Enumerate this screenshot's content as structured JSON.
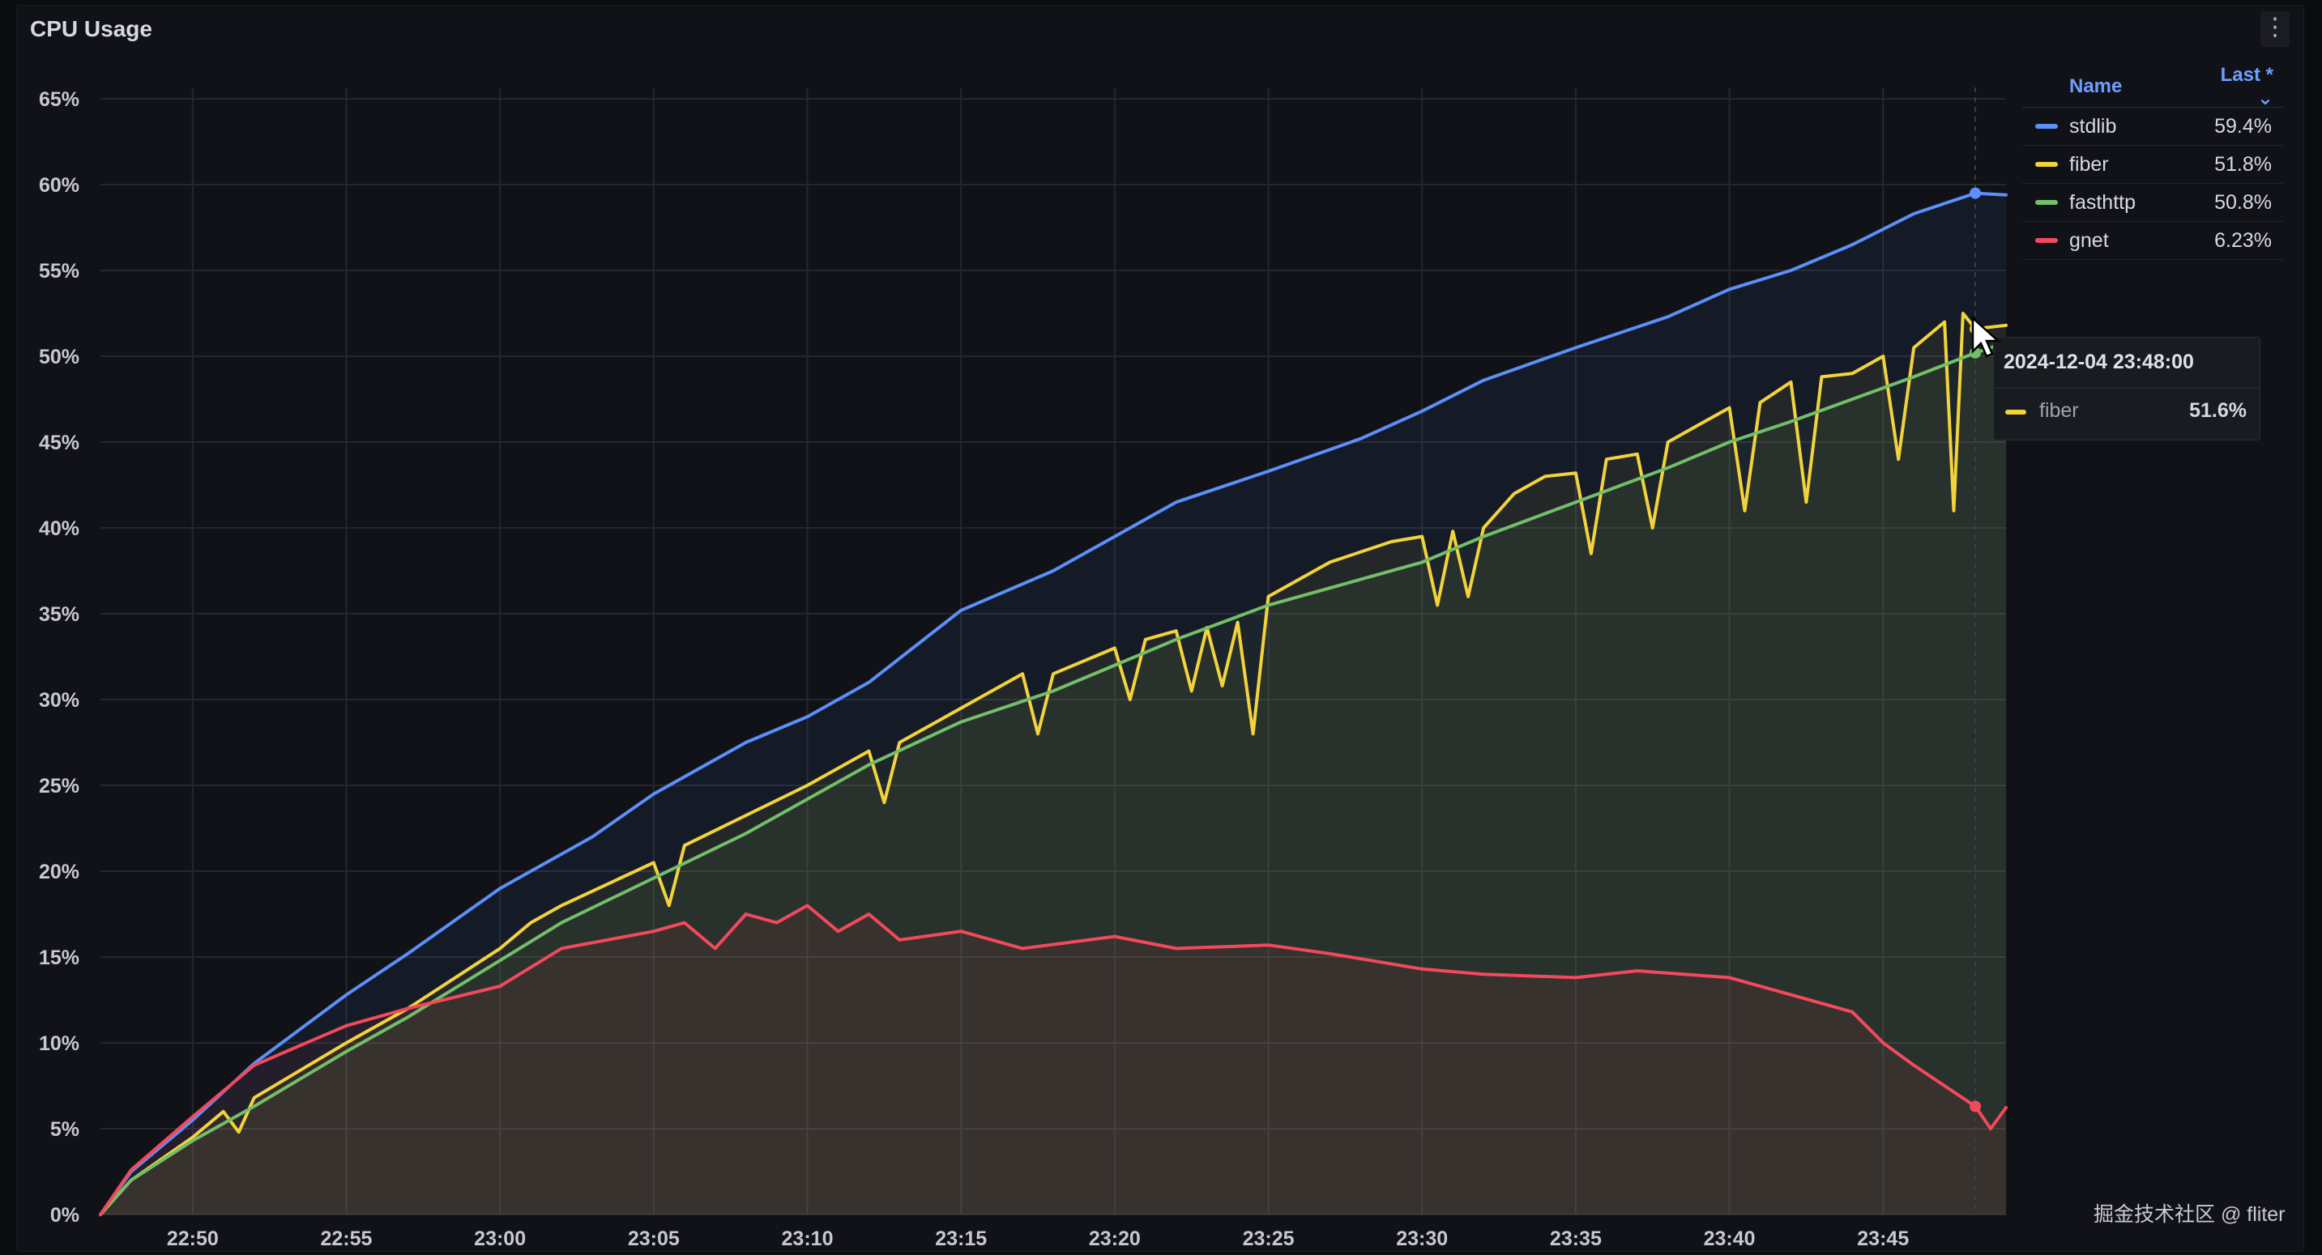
{
  "panel": {
    "title": "CPU Usage",
    "menu_glyph": "⋮"
  },
  "legend": {
    "name_header": "Name",
    "last_header": "Last * ⌄",
    "items": [
      {
        "name": "stdlib",
        "value": "59.4%",
        "color": "#5b8ff9"
      },
      {
        "name": "fiber",
        "value": "51.8%",
        "color": "#f2d33c"
      },
      {
        "name": "fasthttp",
        "value": "50.8%",
        "color": "#73bf69"
      },
      {
        "name": "gnet",
        "value": "6.23%",
        "color": "#f2495c"
      }
    ]
  },
  "tooltip": {
    "time": "2024-12-04 23:48:00",
    "series": "fiber",
    "value": "51.6%",
    "color": "#f2d33c"
  },
  "watermark": "掘金技术社区 @ fliter",
  "chart_data": {
    "type": "line",
    "title": "CPU Usage",
    "x_unit": "minutes (HH:MM)",
    "xlim": [
      "22:47",
      "23:49"
    ],
    "x_ticks": [
      "22:50",
      "22:55",
      "23:00",
      "23:05",
      "23:10",
      "23:15",
      "23:20",
      "23:25",
      "23:30",
      "23:35",
      "23:40",
      "23:45"
    ],
    "ylim": [
      0,
      65
    ],
    "y_ticks": [
      "0%",
      "5%",
      "10%",
      "15%",
      "20%",
      "25%",
      "30%",
      "35%",
      "40%",
      "45%",
      "50%",
      "55%",
      "60%",
      "65%"
    ],
    "grid": true,
    "legend_position": "top-right",
    "series": [
      {
        "name": "stdlib",
        "color": "#5b8ff9",
        "points": [
          [
            "22:47",
            0
          ],
          [
            "22:48",
            2.5
          ],
          [
            "22:50",
            5.5
          ],
          [
            "22:52",
            8.8
          ],
          [
            "22:55",
            12.8
          ],
          [
            "22:57",
            15.2
          ],
          [
            "23:00",
            19
          ],
          [
            "23:03",
            22
          ],
          [
            "23:05",
            24.5
          ],
          [
            "23:08",
            27.5
          ],
          [
            "23:10",
            29
          ],
          [
            "23:12",
            31
          ],
          [
            "23:15",
            35.2
          ],
          [
            "23:18",
            37.5
          ],
          [
            "23:20",
            39.5
          ],
          [
            "23:22",
            41.5
          ],
          [
            "23:25",
            43.3
          ],
          [
            "23:28",
            45.2
          ],
          [
            "23:30",
            46.8
          ],
          [
            "23:32",
            48.6
          ],
          [
            "23:35",
            50.5
          ],
          [
            "23:38",
            52.3
          ],
          [
            "23:40",
            53.9
          ],
          [
            "23:42",
            55
          ],
          [
            "23:44",
            56.5
          ],
          [
            "23:46",
            58.3
          ],
          [
            "23:48",
            59.5
          ],
          [
            "23:49",
            59.4
          ]
        ]
      },
      {
        "name": "fiber",
        "color": "#f2d33c",
        "points": [
          [
            "22:47",
            0
          ],
          [
            "22:48",
            2
          ],
          [
            "22:50",
            4.5
          ],
          [
            "22:51",
            6
          ],
          [
            "22:51.5",
            4.8
          ],
          [
            "22:52",
            6.8
          ],
          [
            "22:55",
            10
          ],
          [
            "22:57",
            12
          ],
          [
            "23:00",
            15.5
          ],
          [
            "23:01",
            17
          ],
          [
            "23:02",
            18
          ],
          [
            "23:05",
            20.5
          ],
          [
            "23:05.5",
            18
          ],
          [
            "23:06",
            21.5
          ],
          [
            "23:10",
            25
          ],
          [
            "23:12",
            27
          ],
          [
            "23:12.5",
            24
          ],
          [
            "23:13",
            27.5
          ],
          [
            "23:15",
            29.5
          ],
          [
            "23:17",
            31.5
          ],
          [
            "23:17.5",
            28
          ],
          [
            "23:18",
            31.5
          ],
          [
            "23:20",
            33
          ],
          [
            "23:20.5",
            30
          ],
          [
            "23:21",
            33.5
          ],
          [
            "23:22",
            34
          ],
          [
            "23:22.5",
            30.5
          ],
          [
            "23:23",
            34.2
          ],
          [
            "23:23.5",
            30.8
          ],
          [
            "23:24",
            34.5
          ],
          [
            "23:24.5",
            28
          ],
          [
            "23:25",
            36
          ],
          [
            "23:27",
            38
          ],
          [
            "23:29",
            39.2
          ],
          [
            "23:30",
            39.5
          ],
          [
            "23:30.5",
            35.5
          ],
          [
            "23:31",
            39.8
          ],
          [
            "23:31.5",
            36
          ],
          [
            "23:32",
            40
          ],
          [
            "23:33",
            42
          ],
          [
            "23:34",
            43
          ],
          [
            "23:35",
            43.2
          ],
          [
            "23:35.5",
            38.5
          ],
          [
            "23:36",
            44
          ],
          [
            "23:37",
            44.3
          ],
          [
            "23:37.5",
            40
          ],
          [
            "23:38",
            45
          ],
          [
            "23:39",
            46
          ],
          [
            "23:40",
            47
          ],
          [
            "23:40.5",
            41
          ],
          [
            "23:41",
            47.3
          ],
          [
            "23:42",
            48.5
          ],
          [
            "23:42.5",
            41.5
          ],
          [
            "23:43",
            48.8
          ],
          [
            "23:44",
            49
          ],
          [
            "23:45",
            50
          ],
          [
            "23:45.5",
            44
          ],
          [
            "23:46",
            50.5
          ],
          [
            "23:47",
            52
          ],
          [
            "23:47.3",
            41
          ],
          [
            "23:47.6",
            52.5
          ],
          [
            "23:48",
            51.6
          ],
          [
            "23:49",
            51.8
          ]
        ]
      },
      {
        "name": "fasthttp",
        "color": "#73bf69",
        "points": [
          [
            "22:47",
            0
          ],
          [
            "22:48",
            2
          ],
          [
            "22:50",
            4.3
          ],
          [
            "22:52",
            6.3
          ],
          [
            "22:55",
            9.5
          ],
          [
            "22:57",
            11.5
          ],
          [
            "23:00",
            14.8
          ],
          [
            "23:02",
            17
          ],
          [
            "23:05",
            19.6
          ],
          [
            "23:08",
            22.2
          ],
          [
            "23:10",
            24.2
          ],
          [
            "23:12",
            26.2
          ],
          [
            "23:15",
            28.7
          ],
          [
            "23:18",
            30.5
          ],
          [
            "23:20",
            32
          ],
          [
            "23:22",
            33.5
          ],
          [
            "23:25",
            35.5
          ],
          [
            "23:28",
            37
          ],
          [
            "23:30",
            38
          ],
          [
            "23:32",
            39.5
          ],
          [
            "23:35",
            41.5
          ],
          [
            "23:38",
            43.5
          ],
          [
            "23:40",
            45
          ],
          [
            "23:42",
            46.2
          ],
          [
            "23:44",
            47.5
          ],
          [
            "23:46",
            48.8
          ],
          [
            "23:48",
            50.2
          ],
          [
            "23:49",
            50.8
          ]
        ]
      },
      {
        "name": "gnet",
        "color": "#f2495c",
        "points": [
          [
            "22:47",
            0
          ],
          [
            "22:48",
            2.6
          ],
          [
            "22:50",
            5.7
          ],
          [
            "22:52",
            8.7
          ],
          [
            "22:55",
            11
          ],
          [
            "22:57",
            12
          ],
          [
            "23:00",
            13.3
          ],
          [
            "23:02",
            15.5
          ],
          [
            "23:05",
            16.5
          ],
          [
            "23:06",
            17
          ],
          [
            "23:07",
            15.5
          ],
          [
            "23:08",
            17.5
          ],
          [
            "23:09",
            17
          ],
          [
            "23:10",
            18
          ],
          [
            "23:11",
            16.5
          ],
          [
            "23:12",
            17.5
          ],
          [
            "23:13",
            16
          ],
          [
            "23:15",
            16.5
          ],
          [
            "23:17",
            15.5
          ],
          [
            "23:20",
            16.2
          ],
          [
            "23:22",
            15.5
          ],
          [
            "23:25",
            15.7
          ],
          [
            "23:27",
            15.2
          ],
          [
            "23:30",
            14.3
          ],
          [
            "23:32",
            14
          ],
          [
            "23:35",
            13.8
          ],
          [
            "23:37",
            14.2
          ],
          [
            "23:40",
            13.8
          ],
          [
            "23:42",
            12.8
          ],
          [
            "23:44",
            11.8
          ],
          [
            "23:45",
            10
          ],
          [
            "23:46",
            8.7
          ],
          [
            "23:47",
            7.5
          ],
          [
            "23:48",
            6.3
          ],
          [
            "23:48.5",
            5
          ],
          [
            "23:49",
            6.23
          ]
        ]
      }
    ],
    "hover": {
      "x": "23:48",
      "series": "fiber",
      "value": 51.6
    }
  }
}
